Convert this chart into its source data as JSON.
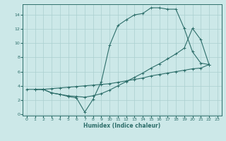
{
  "xlabel": "Humidex (Indice chaleur)",
  "ylabel": "",
  "bg_color": "#cce8e8",
  "line_color": "#2d6e6a",
  "grid_color": "#aacfcf",
  "xlim": [
    -0.5,
    23.5
  ],
  "ylim": [
    -0.2,
    15.5
  ],
  "xticks": [
    0,
    1,
    2,
    3,
    4,
    5,
    6,
    7,
    8,
    9,
    10,
    11,
    12,
    13,
    14,
    15,
    16,
    17,
    18,
    19,
    20,
    21,
    22,
    23
  ],
  "yticks": [
    0,
    2,
    4,
    6,
    8,
    10,
    12,
    14
  ],
  "line1_x": [
    1,
    2,
    3,
    4,
    5,
    6,
    7,
    8,
    9,
    10,
    11,
    12,
    13,
    14,
    15,
    16,
    17,
    18,
    19,
    20,
    21,
    22
  ],
  "line1_y": [
    3.5,
    3.5,
    3.0,
    2.8,
    2.5,
    2.3,
    0.3,
    2.1,
    4.6,
    9.7,
    12.5,
    13.3,
    14.0,
    14.2,
    15.0,
    15.0,
    14.8,
    14.8,
    12.1,
    8.8,
    7.2,
    7.0
  ],
  "line2_x": [
    1,
    2,
    3,
    4,
    5,
    6,
    7,
    8,
    9,
    10,
    11,
    12,
    13,
    14,
    15,
    16,
    17,
    18,
    19,
    20,
    21,
    22
  ],
  "line2_y": [
    3.5,
    3.5,
    3.0,
    2.8,
    2.6,
    2.5,
    2.4,
    2.6,
    2.9,
    3.4,
    4.0,
    4.6,
    5.2,
    5.8,
    6.5,
    7.1,
    7.8,
    8.5,
    9.3,
    12.1,
    10.5,
    7.0
  ],
  "line3_x": [
    0,
    1,
    2,
    3,
    4,
    5,
    6,
    7,
    8,
    9,
    10,
    11,
    12,
    13,
    14,
    15,
    16,
    17,
    18,
    19,
    20,
    21,
    22
  ],
  "line3_y": [
    3.5,
    3.5,
    3.5,
    3.6,
    3.7,
    3.8,
    3.9,
    4.0,
    4.1,
    4.2,
    4.3,
    4.5,
    4.7,
    4.9,
    5.1,
    5.4,
    5.6,
    5.8,
    6.0,
    6.2,
    6.4,
    6.5,
    7.0
  ]
}
